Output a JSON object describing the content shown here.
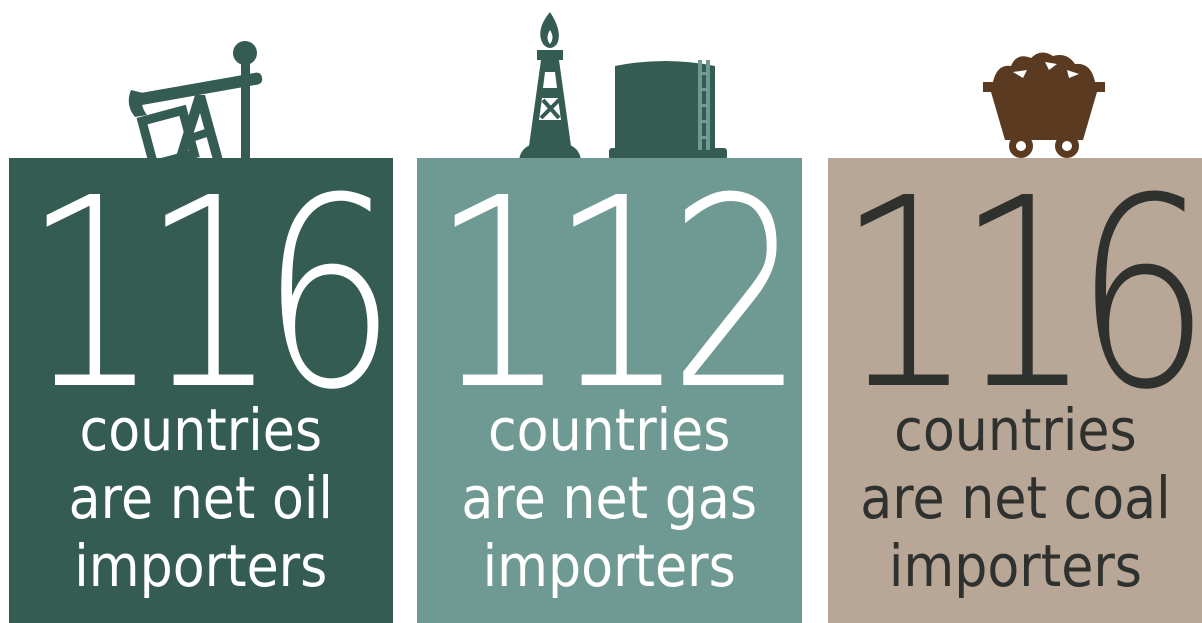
{
  "colors": {
    "oil": "#345c53",
    "gas": "#6f9a93",
    "coal": "#b8a796",
    "coal_icon": "#5b3a22",
    "dark_text": "#2e312e"
  },
  "cards": [
    {
      "icon": "oil-pump-icon",
      "number": "116",
      "line1": "countries",
      "line2": "are net oil",
      "line3": "importers"
    },
    {
      "icon": "gas-tower-tank-icon",
      "number": "112",
      "line1": "countries",
      "line2": "are net gas",
      "line3": "importers"
    },
    {
      "icon": "coal-cart-icon",
      "number": "116",
      "line1": "countries",
      "line2": "are net coal",
      "line3": "importers"
    }
  ]
}
